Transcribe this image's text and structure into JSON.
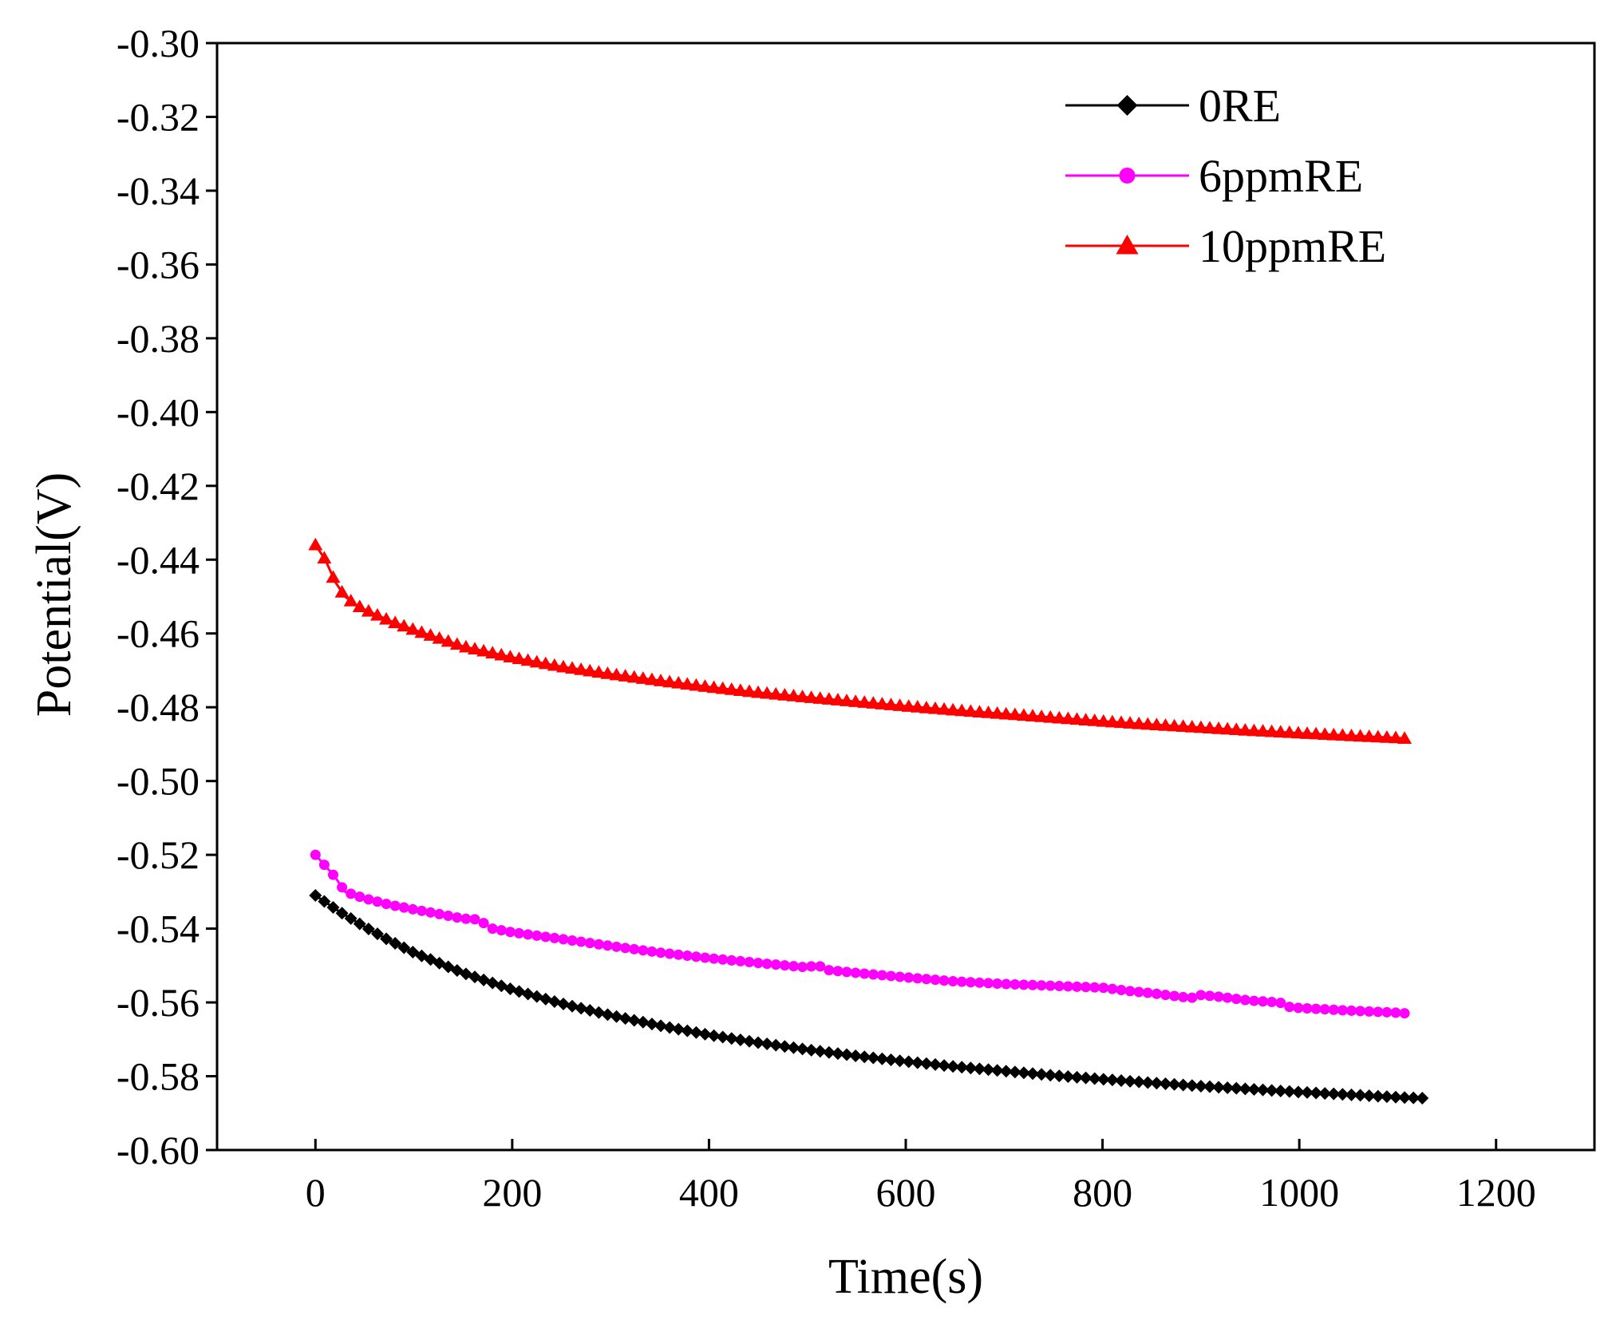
{
  "chart_data": {
    "type": "line",
    "title": "",
    "xlabel": "Time(s)",
    "ylabel": "Potential(V)",
    "xlim": [
      -100,
      1300
    ],
    "ylim": [
      -0.6,
      -0.3
    ],
    "xticks": [
      0,
      200,
      400,
      600,
      800,
      1000,
      1200
    ],
    "xtick_labels": [
      "0",
      "200",
      "400",
      "600",
      "800",
      "1000",
      "1200"
    ],
    "yticks": [
      -0.3,
      -0.32,
      -0.34,
      -0.36,
      -0.38,
      -0.4,
      -0.42,
      -0.44,
      -0.46,
      -0.48,
      -0.5,
      -0.52,
      -0.54,
      -0.56,
      -0.58,
      -0.6
    ],
    "ytick_labels": [
      "-0.30",
      "-0.32",
      "-0.34",
      "-0.36",
      "-0.38",
      "-0.40",
      "-0.42",
      "-0.44",
      "-0.46",
      "-0.48",
      "-0.50",
      "-0.52",
      "-0.54",
      "-0.56",
      "-0.58",
      "-0.60"
    ],
    "grid": false,
    "legend_position": "top-right",
    "series": [
      {
        "name": "0RE",
        "color": "#000000",
        "marker": "diamond",
        "x": [
          0,
          25,
          50,
          75,
          100,
          150,
          200,
          250,
          300,
          350,
          400,
          450,
          500,
          550,
          600,
          650,
          700,
          750,
          800,
          850,
          900,
          950,
          1000,
          1050,
          1100,
          1130
        ],
        "y": [
          -0.531,
          -0.5355,
          -0.5395,
          -0.5432,
          -0.5465,
          -0.552,
          -0.5565,
          -0.5603,
          -0.5635,
          -0.5663,
          -0.5688,
          -0.5709,
          -0.5728,
          -0.5745,
          -0.576,
          -0.5774,
          -0.5786,
          -0.5798,
          -0.5808,
          -0.5818,
          -0.5827,
          -0.5835,
          -0.5843,
          -0.585,
          -0.5857,
          -0.586
        ]
      },
      {
        "name": "6ppmRE",
        "color": "#ff00ff",
        "marker": "circle",
        "x": [
          0,
          10,
          20,
          30,
          50,
          75,
          100,
          125,
          150,
          165,
          180,
          200,
          250,
          300,
          350,
          400,
          450,
          500,
          510,
          520,
          550,
          600,
          650,
          700,
          750,
          800,
          830,
          850,
          880,
          890,
          900,
          920,
          950,
          980,
          990,
          1000,
          1050,
          1100,
          1110
        ],
        "y": [
          -0.52,
          -0.523,
          -0.526,
          -0.53,
          -0.5318,
          -0.5335,
          -0.5348,
          -0.536,
          -0.5373,
          -0.5375,
          -0.54,
          -0.541,
          -0.5428,
          -0.5447,
          -0.5465,
          -0.548,
          -0.5493,
          -0.5505,
          -0.5498,
          -0.5512,
          -0.552,
          -0.5532,
          -0.5543,
          -0.555,
          -0.5555,
          -0.556,
          -0.557,
          -0.5575,
          -0.5585,
          -0.5588,
          -0.558,
          -0.5585,
          -0.5595,
          -0.56,
          -0.5612,
          -0.5615,
          -0.5622,
          -0.5628,
          -0.563
        ]
      },
      {
        "name": "10ppmRE",
        "color": "#ff0000",
        "marker": "triangle",
        "x": [
          0,
          10,
          20,
          30,
          40,
          50,
          75,
          100,
          150,
          200,
          250,
          300,
          350,
          400,
          450,
          500,
          550,
          600,
          650,
          700,
          750,
          800,
          850,
          900,
          950,
          1000,
          1050,
          1100,
          1110
        ],
        "y": [
          -0.436,
          -0.44,
          -0.446,
          -0.45,
          -0.452,
          -0.4535,
          -0.4565,
          -0.459,
          -0.4635,
          -0.4665,
          -0.469,
          -0.471,
          -0.4728,
          -0.4745,
          -0.476,
          -0.4773,
          -0.4785,
          -0.4797,
          -0.4808,
          -0.4818,
          -0.4828,
          -0.4838,
          -0.4847,
          -0.4855,
          -0.4863,
          -0.487,
          -0.4877,
          -0.4883,
          -0.4885
        ]
      }
    ]
  }
}
